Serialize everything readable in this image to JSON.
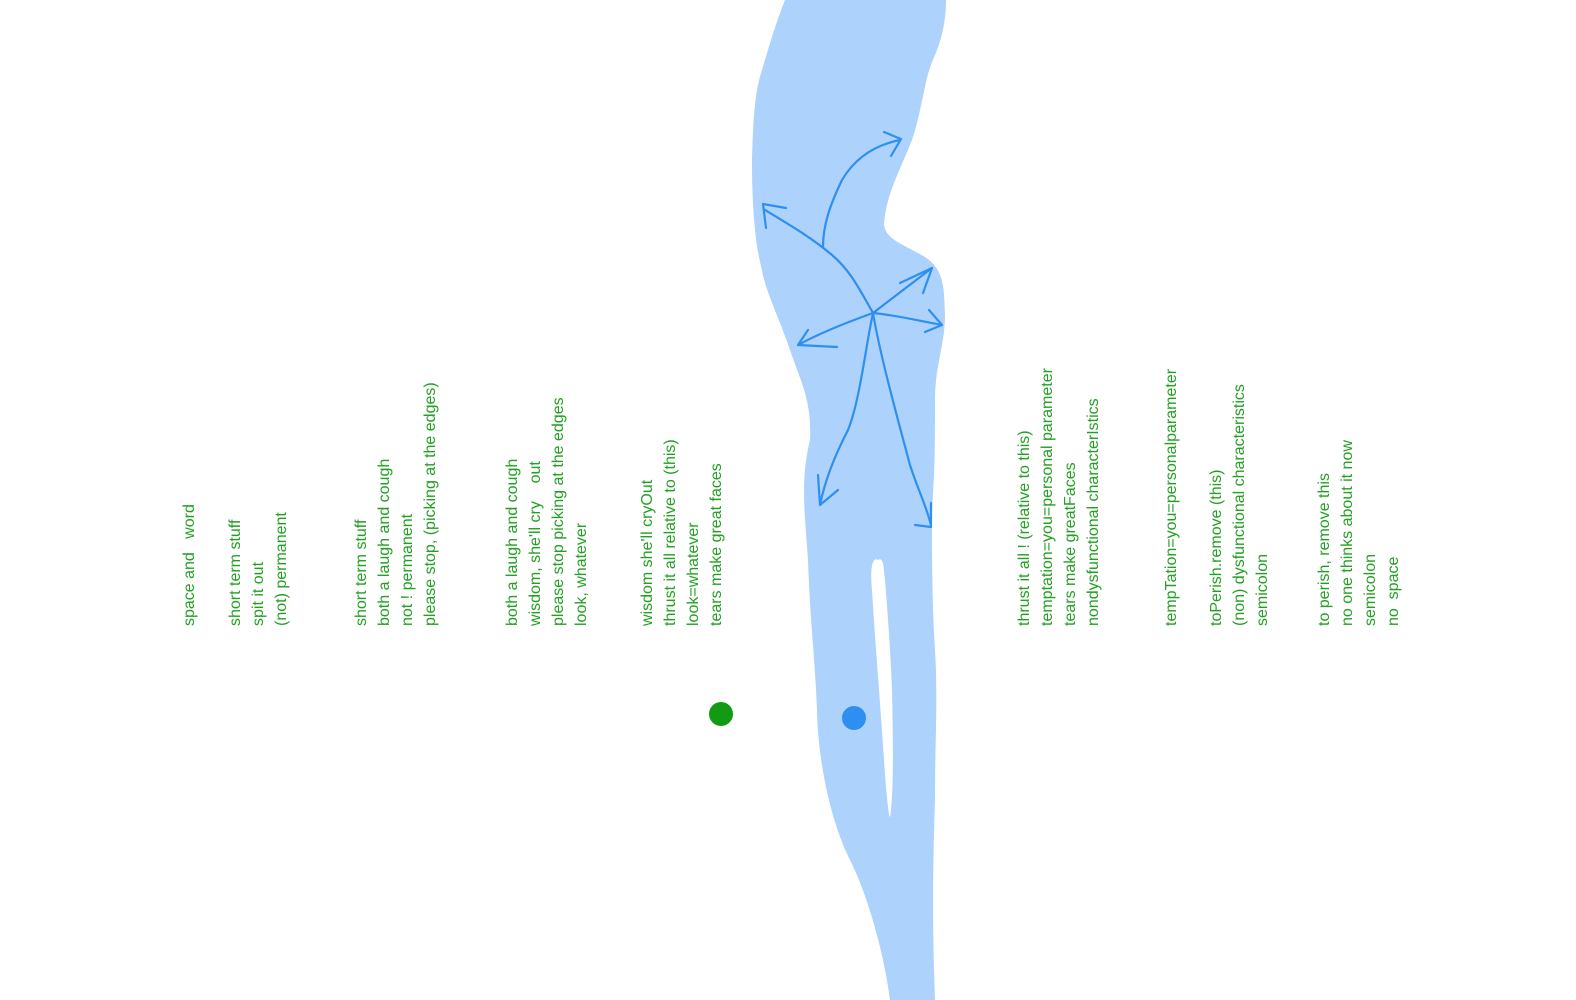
{
  "colors": {
    "text": "#22a022",
    "figure_fill": "#add2fb",
    "stroke": "#2f8ff0",
    "dot": "#129a12"
  },
  "text_columns": [
    [
      "space and   word"
    ],
    [
      "short term stuff",
      "spit it out",
      "(not) permanent"
    ],
    [
      "short term stuff",
      "both a laugh and cough",
      "not ! permanent",
      "please stop, (picking at the edges)"
    ],
    [
      "both a laugh and cough",
      "wisdom, she'll cry    out",
      "please stop picking at the edges",
      "look, whatever"
    ],
    [
      "wisdom she'll cryOut",
      "thrust it all relative to (this)",
      "look=whatever",
      "tears make great faces"
    ],
    [
      "thrust it all ! (relative to this)",
      "temptation=you=personal parameter",
      "tears make greatFaces",
      "nondysfunctional characterIstics"
    ],
    [
      "tempTation=you=personalparameter"
    ],
    [
      "toPerish.remove (this)",
      "(non) dysfunctional characteristics",
      "semicolon"
    ],
    [
      "to perish, remove this",
      "no one thinks about it now",
      "semicolon",
      "no  space"
    ]
  ],
  "icons": {
    "figure": "figure-silhouette",
    "arrows": "arrow-icon",
    "green_dot": "green-dot-icon",
    "blue_scribble": "scribble-circle-icon"
  }
}
